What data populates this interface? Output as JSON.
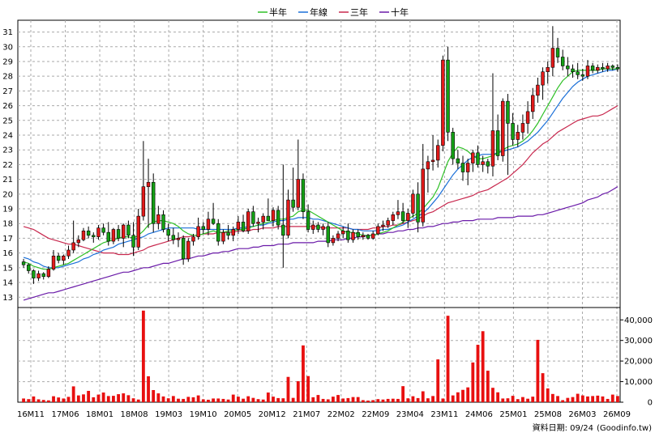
{
  "chart_data": {
    "type": "candlestick+volume",
    "legend": [
      {
        "label": "半年",
        "color": "#2ec026"
      },
      {
        "label": "年線",
        "color": "#1a6fd8"
      },
      {
        "label": "三年",
        "color": "#c8284e"
      },
      {
        "label": "十年",
        "color": "#6a1aa8"
      }
    ],
    "price_axis": {
      "ticks": [
        13,
        14,
        15,
        16,
        17,
        18,
        19,
        20,
        21,
        22,
        23,
        24,
        25,
        26,
        27,
        28,
        29,
        30,
        31
      ],
      "ylim": [
        12.3,
        31.8
      ]
    },
    "volume_axis": {
      "ticks": [
        0,
        10000,
        20000,
        30000,
        40000
      ],
      "tick_labels": [
        "0",
        "10,000",
        "20,000",
        "30,000",
        "40,000"
      ],
      "ylim": [
        0,
        46000
      ]
    },
    "x_labels": [
      "16M11",
      "17M06",
      "18M01",
      "18M08",
      "19M03",
      "19M10",
      "20M05",
      "20M12",
      "21M07",
      "22M02",
      "22M09",
      "23M04",
      "23M11",
      "24M06",
      "25M01",
      "25M08",
      "26M03",
      "26M09"
    ],
    "n_periods": 120,
    "candles": [
      [
        15.4,
        15.6,
        15.0,
        15.2
      ],
      [
        15.2,
        15.3,
        14.6,
        14.8
      ],
      [
        14.8,
        14.9,
        13.9,
        14.3
      ],
      [
        14.3,
        14.8,
        14.1,
        14.6
      ],
      [
        14.6,
        14.7,
        14.2,
        14.4
      ],
      [
        14.4,
        15.1,
        14.3,
        14.9
      ],
      [
        14.9,
        16.2,
        14.8,
        15.8
      ],
      [
        15.8,
        16.0,
        15.3,
        15.5
      ],
      [
        15.5,
        15.9,
        15.2,
        15.8
      ],
      [
        15.8,
        16.5,
        15.6,
        16.2
      ],
      [
        16.2,
        18.2,
        16.0,
        16.7
      ],
      [
        16.7,
        17.2,
        16.4,
        16.9
      ],
      [
        16.9,
        17.7,
        16.8,
        17.5
      ],
      [
        17.5,
        17.8,
        17.0,
        17.2
      ],
      [
        17.2,
        17.4,
        16.7,
        17.1
      ],
      [
        17.1,
        17.9,
        16.9,
        17.7
      ],
      [
        17.7,
        18.0,
        17.2,
        17.4
      ],
      [
        17.4,
        18.1,
        16.5,
        16.8
      ],
      [
        16.8,
        17.7,
        16.6,
        17.6
      ],
      [
        17.6,
        17.9,
        16.8,
        17.0
      ],
      [
        17.0,
        18.0,
        16.4,
        17.9
      ],
      [
        17.9,
        18.2,
        17.0,
        17.2
      ],
      [
        17.2,
        18.1,
        15.8,
        16.4
      ],
      [
        16.4,
        19.0,
        16.2,
        18.5
      ],
      [
        18.5,
        23.6,
        18.2,
        20.5
      ],
      [
        20.5,
        22.4,
        17.7,
        20.8
      ],
      [
        20.8,
        21.4,
        17.4,
        18.0
      ],
      [
        18.0,
        19.2,
        17.6,
        18.6
      ],
      [
        18.6,
        18.9,
        17.4,
        17.6
      ],
      [
        17.6,
        18.0,
        16.8,
        17.2
      ],
      [
        17.2,
        17.7,
        16.6,
        16.9
      ],
      [
        16.9,
        17.4,
        16.4,
        17.0
      ],
      [
        17.0,
        17.2,
        15.2,
        15.6
      ],
      [
        15.6,
        17.0,
        15.4,
        16.8
      ],
      [
        16.8,
        17.3,
        16.5,
        17.1
      ],
      [
        17.1,
        18.4,
        16.9,
        17.8
      ],
      [
        17.8,
        18.1,
        17.3,
        17.6
      ],
      [
        17.6,
        18.8,
        17.2,
        18.3
      ],
      [
        18.3,
        19.4,
        17.9,
        18.0
      ],
      [
        18.0,
        18.3,
        16.5,
        16.8
      ],
      [
        16.8,
        17.6,
        16.6,
        17.4
      ],
      [
        17.4,
        17.9,
        16.9,
        17.2
      ],
      [
        17.2,
        17.8,
        16.8,
        17.6
      ],
      [
        17.6,
        18.5,
        17.3,
        18.1
      ],
      [
        18.1,
        18.6,
        17.4,
        17.5
      ],
      [
        17.5,
        19.0,
        17.3,
        18.8
      ],
      [
        18.8,
        19.2,
        17.8,
        18.0
      ],
      [
        18.0,
        18.4,
        17.4,
        18.1
      ],
      [
        18.1,
        18.7,
        17.6,
        18.5
      ],
      [
        18.5,
        19.7,
        18.2,
        18.2
      ],
      [
        18.2,
        19.1,
        17.8,
        18.9
      ],
      [
        18.9,
        19.2,
        17.6,
        17.9
      ],
      [
        17.9,
        22.0,
        15.0,
        17.2
      ],
      [
        17.2,
        20.3,
        17.0,
        19.6
      ],
      [
        19.6,
        21.8,
        18.8,
        19.1
      ],
      [
        19.1,
        23.7,
        18.9,
        21.0
      ],
      [
        21.0,
        21.4,
        18.3,
        18.8
      ],
      [
        18.8,
        19.3,
        17.4,
        17.6
      ],
      [
        17.6,
        18.2,
        17.3,
        17.9
      ],
      [
        17.9,
        18.1,
        17.4,
        17.6
      ],
      [
        17.6,
        18.0,
        17.2,
        17.8
      ],
      [
        17.8,
        18.1,
        16.4,
        16.7
      ],
      [
        16.7,
        17.2,
        16.5,
        17.0
      ],
      [
        17.0,
        17.5,
        16.8,
        17.3
      ],
      [
        17.3,
        17.8,
        17.0,
        17.5
      ],
      [
        17.5,
        18.0,
        16.7,
        16.9
      ],
      [
        16.9,
        17.6,
        16.7,
        17.4
      ],
      [
        17.4,
        17.6,
        16.9,
        17.1
      ],
      [
        17.1,
        17.4,
        16.9,
        17.2
      ],
      [
        17.2,
        17.3,
        16.9,
        17.0
      ],
      [
        17.0,
        17.5,
        16.9,
        17.3
      ],
      [
        17.3,
        18.0,
        17.2,
        17.8
      ],
      [
        17.8,
        18.2,
        17.5,
        17.9
      ],
      [
        17.9,
        18.4,
        17.7,
        18.2
      ],
      [
        18.2,
        18.8,
        17.9,
        18.6
      ],
      [
        18.6,
        19.6,
        18.3,
        18.8
      ],
      [
        18.8,
        19.4,
        18.0,
        18.2
      ],
      [
        18.2,
        19.0,
        17.7,
        18.7
      ],
      [
        18.7,
        20.3,
        18.4,
        20.0
      ],
      [
        20.0,
        20.8,
        17.4,
        18.1
      ],
      [
        18.1,
        23.4,
        17.8,
        21.7
      ],
      [
        21.7,
        22.6,
        20.1,
        22.2
      ],
      [
        22.2,
        24.0,
        21.6,
        22.3
      ],
      [
        22.3,
        23.7,
        21.8,
        23.3
      ],
      [
        23.3,
        29.4,
        22.9,
        29.1
      ],
      [
        29.1,
        30.0,
        23.6,
        24.2
      ],
      [
        24.2,
        24.5,
        22.0,
        22.4
      ],
      [
        22.4,
        23.0,
        21.7,
        22.1
      ],
      [
        22.1,
        22.6,
        20.9,
        21.5
      ],
      [
        21.5,
        22.4,
        20.6,
        22.1
      ],
      [
        22.1,
        23.0,
        21.5,
        22.8
      ],
      [
        22.8,
        23.3,
        21.8,
        22.0
      ],
      [
        22.0,
        22.6,
        21.5,
        22.2
      ],
      [
        22.2,
        22.4,
        21.4,
        21.9
      ],
      [
        21.9,
        28.2,
        21.2,
        24.3
      ],
      [
        24.3,
        25.4,
        22.3,
        22.6
      ],
      [
        22.6,
        26.5,
        22.2,
        26.3
      ],
      [
        26.3,
        26.8,
        21.3,
        24.8
      ],
      [
        24.8,
        25.5,
        23.3,
        23.7
      ],
      [
        23.7,
        24.7,
        23.2,
        24.2
      ],
      [
        24.2,
        25.4,
        23.7,
        24.8
      ],
      [
        24.8,
        26.3,
        24.1,
        25.6
      ],
      [
        25.6,
        27.2,
        25.1,
        26.7
      ],
      [
        26.7,
        27.9,
        26.2,
        27.4
      ],
      [
        27.4,
        28.6,
        26.4,
        28.3
      ],
      [
        28.3,
        29.0,
        27.5,
        28.6
      ],
      [
        28.6,
        31.4,
        28.0,
        29.9
      ],
      [
        29.9,
        30.6,
        28.9,
        29.3
      ],
      [
        29.3,
        29.8,
        28.4,
        28.7
      ],
      [
        28.7,
        29.3,
        28.0,
        28.5
      ],
      [
        28.5,
        28.8,
        27.9,
        28.3
      ],
      [
        28.3,
        28.9,
        27.8,
        28.1
      ],
      [
        28.1,
        28.5,
        27.7,
        28.0
      ],
      [
        28.0,
        29.1,
        27.8,
        28.7
      ],
      [
        28.7,
        28.9,
        28.2,
        28.4
      ],
      [
        28.4,
        28.8,
        28.2,
        28.6
      ],
      [
        28.6,
        28.9,
        28.3,
        28.5
      ],
      [
        28.5,
        28.9,
        28.3,
        28.7
      ],
      [
        28.7,
        28.8,
        28.4,
        28.6
      ],
      [
        28.6,
        28.8,
        28.3,
        28.5
      ]
    ],
    "volume": [
      1800,
      1500,
      2800,
      1400,
      1100,
      900,
      2900,
      2300,
      1800,
      2600,
      7700,
      3300,
      3800,
      5500,
      2400,
      3700,
      4700,
      3000,
      3100,
      3900,
      4300,
      3400,
      1900,
      1300,
      44500,
      12600,
      5900,
      4300,
      2800,
      1900,
      3000,
      1700,
      1600,
      2600,
      2400,
      3300,
      1400,
      1200,
      1800,
      1800,
      1600,
      1300,
      3700,
      2700,
      1700,
      2900,
      2100,
      1500,
      1300,
      4700,
      2700,
      2000,
      1900,
      12300,
      2100,
      10200,
      27600,
      12700,
      2400,
      3500,
      1600,
      1400,
      2700,
      3500,
      1800,
      2000,
      2500,
      2500,
      1000,
      800,
      1000,
      1500,
      1300,
      1600,
      1700,
      1600,
      7800,
      1900,
      2900,
      2000,
      5300,
      1900,
      3000,
      20800,
      1800,
      42000,
      3300,
      4800,
      6000,
      7200,
      19300,
      27900,
      34500,
      15300,
      7000,
      4800,
      1800,
      1900,
      3100,
      1500,
      2500,
      1700,
      2700,
      30300,
      14100,
      6700,
      4000,
      3000,
      1000,
      2100,
      2500,
      4100,
      3300,
      2800,
      3000,
      3200,
      2800,
      1600,
      3700,
      3000
    ],
    "ma_half": [
      15.4,
      15.3,
      15.1,
      15.0,
      14.9,
      14.9,
      15.0,
      15.1,
      15.2,
      15.3,
      15.5,
      15.7,
      15.9,
      16.1,
      16.3,
      16.5,
      16.7,
      16.8,
      16.9,
      17.0,
      17.1,
      17.1,
      17.0,
      17.2,
      17.5,
      17.9,
      18.1,
      18.2,
      18.2,
      18.1,
      18.0,
      17.8,
      17.5,
      17.3,
      17.2,
      17.2,
      17.3,
      17.4,
      17.5,
      17.4,
      17.4,
      17.5,
      17.5,
      17.6,
      17.6,
      17.7,
      17.8,
      17.9,
      18.0,
      18.1,
      18.2,
      18.3,
      18.3,
      18.4,
      18.5,
      18.8,
      18.9,
      18.9,
      18.7,
      18.5,
      18.3,
      18.1,
      17.9,
      17.7,
      17.5,
      17.4,
      17.4,
      17.3,
      17.2,
      17.2,
      17.2,
      17.3,
      17.4,
      17.5,
      17.7,
      17.9,
      18.1,
      18.3,
      18.5,
      18.7,
      19.0,
      19.4,
      19.8,
      20.4,
      21.3,
      22.2,
      22.8,
      23.2,
      23.1,
      22.9,
      22.6,
      22.4,
      22.4,
      22.5,
      22.6,
      22.8,
      23.0,
      23.2,
      23.3,
      23.4,
      23.6,
      23.9,
      24.3,
      24.8,
      25.4,
      26.0,
      26.6,
      27.2,
      27.7,
      28.0,
      28.3,
      28.4,
      28.4,
      28.4,
      28.4,
      28.4,
      28.5,
      28.5,
      28.5,
      28.5
    ],
    "ma_year": [
      15.7,
      15.6,
      15.4,
      15.3,
      15.1,
      15.0,
      15.0,
      15.0,
      15.1,
      15.2,
      15.3,
      15.4,
      15.6,
      15.7,
      15.9,
      16.0,
      16.2,
      16.3,
      16.4,
      16.6,
      16.7,
      16.8,
      16.9,
      17.0,
      17.1,
      17.3,
      17.4,
      17.5,
      17.6,
      17.7,
      17.7,
      17.7,
      17.7,
      17.7,
      17.7,
      17.6,
      17.6,
      17.6,
      17.6,
      17.6,
      17.6,
      17.6,
      17.6,
      17.7,
      17.7,
      17.8,
      17.8,
      17.9,
      17.9,
      18.0,
      18.1,
      18.2,
      18.2,
      18.3,
      18.3,
      18.4,
      18.4,
      18.4,
      18.3,
      18.3,
      18.2,
      18.1,
      18.0,
      17.9,
      17.8,
      17.7,
      17.6,
      17.6,
      17.5,
      17.5,
      17.5,
      17.5,
      17.6,
      17.6,
      17.7,
      17.8,
      17.9,
      18.1,
      18.3,
      18.5,
      18.7,
      19.0,
      19.4,
      19.8,
      20.3,
      20.8,
      21.3,
      21.7,
      22.0,
      22.3,
      22.5,
      22.6,
      22.7,
      22.7,
      22.7,
      22.8,
      22.9,
      23.0,
      23.1,
      23.2,
      23.4,
      23.6,
      23.9,
      24.2,
      24.6,
      25.0,
      25.5,
      26.0,
      26.5,
      26.9,
      27.3,
      27.6,
      27.8,
      28.0,
      28.1,
      28.2,
      28.3,
      28.4,
      28.4,
      28.5
    ],
    "ma_3y": [
      17.8,
      17.7,
      17.6,
      17.4,
      17.2,
      17.0,
      16.9,
      16.8,
      16.7,
      16.6,
      16.6,
      16.5,
      16.4,
      16.3,
      16.2,
      16.1,
      16.0,
      16.0,
      16.0,
      15.9,
      15.9,
      15.9,
      16.0,
      16.1,
      16.2,
      16.4,
      16.5,
      16.6,
      16.7,
      16.8,
      16.9,
      17.0,
      17.1,
      17.1,
      17.2,
      17.2,
      17.3,
      17.3,
      17.3,
      17.4,
      17.4,
      17.4,
      17.4,
      17.5,
      17.5,
      17.5,
      17.6,
      17.6,
      17.7,
      17.7,
      17.7,
      17.8,
      17.8,
      17.8,
      17.8,
      17.8,
      17.8,
      17.8,
      17.8,
      17.8,
      17.7,
      17.7,
      17.7,
      17.7,
      17.7,
      17.7,
      17.6,
      17.6,
      17.6,
      17.6,
      17.7,
      17.7,
      17.8,
      17.8,
      17.9,
      17.9,
      18.0,
      18.1,
      18.2,
      18.3,
      18.5,
      18.7,
      18.8,
      19.0,
      19.2,
      19.4,
      19.5,
      19.6,
      19.7,
      19.8,
      19.9,
      20.1,
      20.2,
      20.3,
      20.5,
      20.7,
      20.9,
      21.1,
      21.4,
      21.7,
      22.0,
      22.4,
      22.8,
      23.1,
      23.4,
      23.6,
      23.9,
      24.2,
      24.4,
      24.6,
      24.8,
      25.0,
      25.1,
      25.2,
      25.3,
      25.3,
      25.4,
      25.6,
      25.8,
      26.0
    ],
    "ma_10y": [
      12.8,
      12.9,
      13.0,
      13.1,
      13.2,
      13.3,
      13.3,
      13.4,
      13.5,
      13.6,
      13.7,
      13.8,
      13.9,
      14.0,
      14.1,
      14.2,
      14.3,
      14.4,
      14.5,
      14.6,
      14.7,
      14.7,
      14.8,
      14.9,
      15.0,
      15.0,
      15.1,
      15.2,
      15.3,
      15.3,
      15.4,
      15.5,
      15.6,
      15.6,
      15.7,
      15.8,
      15.8,
      15.9,
      16.0,
      16.0,
      16.1,
      16.1,
      16.2,
      16.3,
      16.3,
      16.3,
      16.4,
      16.4,
      16.5,
      16.5,
      16.5,
      16.6,
      16.6,
      16.6,
      16.7,
      16.7,
      16.7,
      16.7,
      16.7,
      16.8,
      16.8,
      16.8,
      16.9,
      16.9,
      16.9,
      17.0,
      17.0,
      17.1,
      17.1,
      17.2,
      17.2,
      17.3,
      17.3,
      17.4,
      17.4,
      17.5,
      17.5,
      17.6,
      17.6,
      17.7,
      17.7,
      17.8,
      17.8,
      17.9,
      18.0,
      18.0,
      18.1,
      18.1,
      18.2,
      18.2,
      18.2,
      18.3,
      18.3,
      18.3,
      18.3,
      18.4,
      18.4,
      18.4,
      18.4,
      18.5,
      18.5,
      18.5,
      18.5,
      18.6,
      18.6,
      18.7,
      18.8,
      18.9,
      19.0,
      19.1,
      19.2,
      19.3,
      19.4,
      19.6,
      19.7,
      19.8,
      20.0,
      20.1,
      20.3,
      20.5
    ]
  },
  "footer": {
    "date_label": "資料日期: 09/24",
    "source": "(Goodinfo.tw)"
  }
}
